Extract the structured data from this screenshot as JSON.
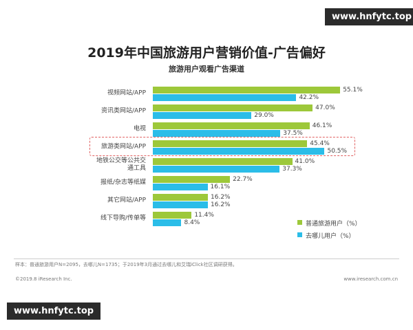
{
  "chart_data": {
    "type": "bar",
    "orientation": "horizontal",
    "title": "2019年中国旅游用户营销价值-广告偏好",
    "subtitle": "旅游用户观看广告渠道",
    "categories": [
      "视频网站/APP",
      "资讯类网站/APP",
      "电视",
      "旅游类网站/APP",
      "地铁公交等公共交\n通工具",
      "报纸/杂志等纸媒",
      "其它网站/APP",
      "线下导购/传单等"
    ],
    "highlight_category": 3,
    "series": [
      {
        "name": "普通旅游用户（%）",
        "color": "#9dc83a",
        "values": [
          55.1,
          47.0,
          46.1,
          45.4,
          41.0,
          22.7,
          16.2,
          11.4
        ],
        "value_labels": [
          "55.1%",
          "47.0%",
          "46.1%",
          "45.4%",
          "41.0%",
          "22.7%",
          "16.2%",
          "11.4%"
        ]
      },
      {
        "name": "去哪儿用户（%）",
        "color": "#2bbde8",
        "values": [
          42.2,
          29.0,
          37.5,
          50.5,
          37.3,
          16.1,
          16.2,
          8.4
        ],
        "value_labels": [
          "42.2%",
          "29.0%",
          "37.5%",
          "50.5%",
          "37.3%",
          "16.1%",
          "16.2%",
          "8.4%"
        ]
      }
    ]
  },
  "footer": {
    "note": "样本：普通旅游用户N=2095，去哪儿N=1735；于2019年3月通过去哪儿和艾瑞iClick社区调研获得。",
    "copyright": "©2019.8 iResearch Inc.",
    "website": "www.iresearch.com.cn"
  },
  "watermark": "www.hnfytc.top"
}
